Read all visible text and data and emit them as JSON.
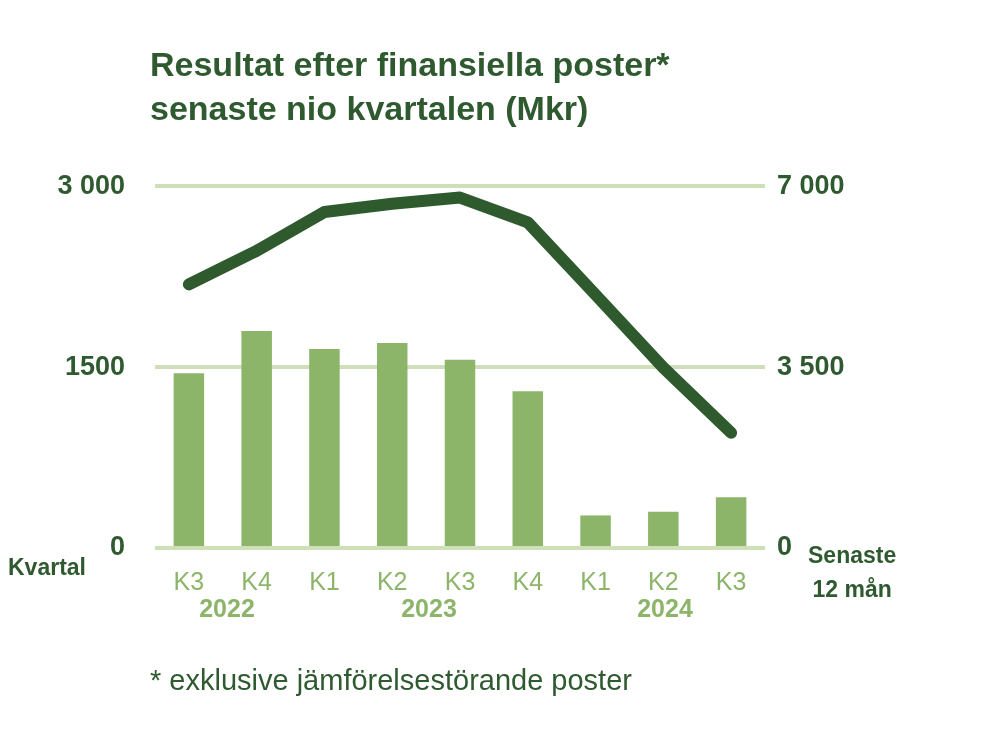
{
  "chart_data": {
    "type": "bar",
    "title": "Resultat efter finansiella poster*",
    "subtitle": "senaste nio kvartalen (Mkr)",
    "categories": [
      "K3",
      "K4",
      "K1",
      "K2",
      "K3",
      "K4",
      "K1",
      "K2",
      "K3"
    ],
    "series": [
      {
        "color": "#8db56a",
        "values": [
          1450,
          1800,
          1650,
          1700,
          1560,
          1300,
          270,
          300,
          420
        ]
      },
      {
        "type": "line",
        "axis": "y2",
        "color": "#2e5a2e",
        "values": [
          5100,
          5750,
          6500,
          6660,
          6780,
          6300,
          4900,
          3490,
          2230
        ]
      }
    ],
    "ylim": [
      0,
      3000
    ],
    "yticks": [
      0,
      {
        "value": 1500,
        "label": "1500"
      },
      {
        "value": 3000,
        "label": "3 000"
      }
    ],
    "y2lim": [
      0,
      7000
    ],
    "y2ticks": [
      0,
      {
        "value": 3500,
        "label": "3 500"
      },
      {
        "value": 7000,
        "label": "7 000"
      }
    ],
    "xlabel": "Kvartal",
    "y2label": "Senaste 12 mån",
    "grid": "y",
    "legend": false,
    "marker": "none",
    "annotations": [
      "2022",
      "2023",
      "2024",
      "* exklusive jämförelsestörande poster"
    ]
  }
}
